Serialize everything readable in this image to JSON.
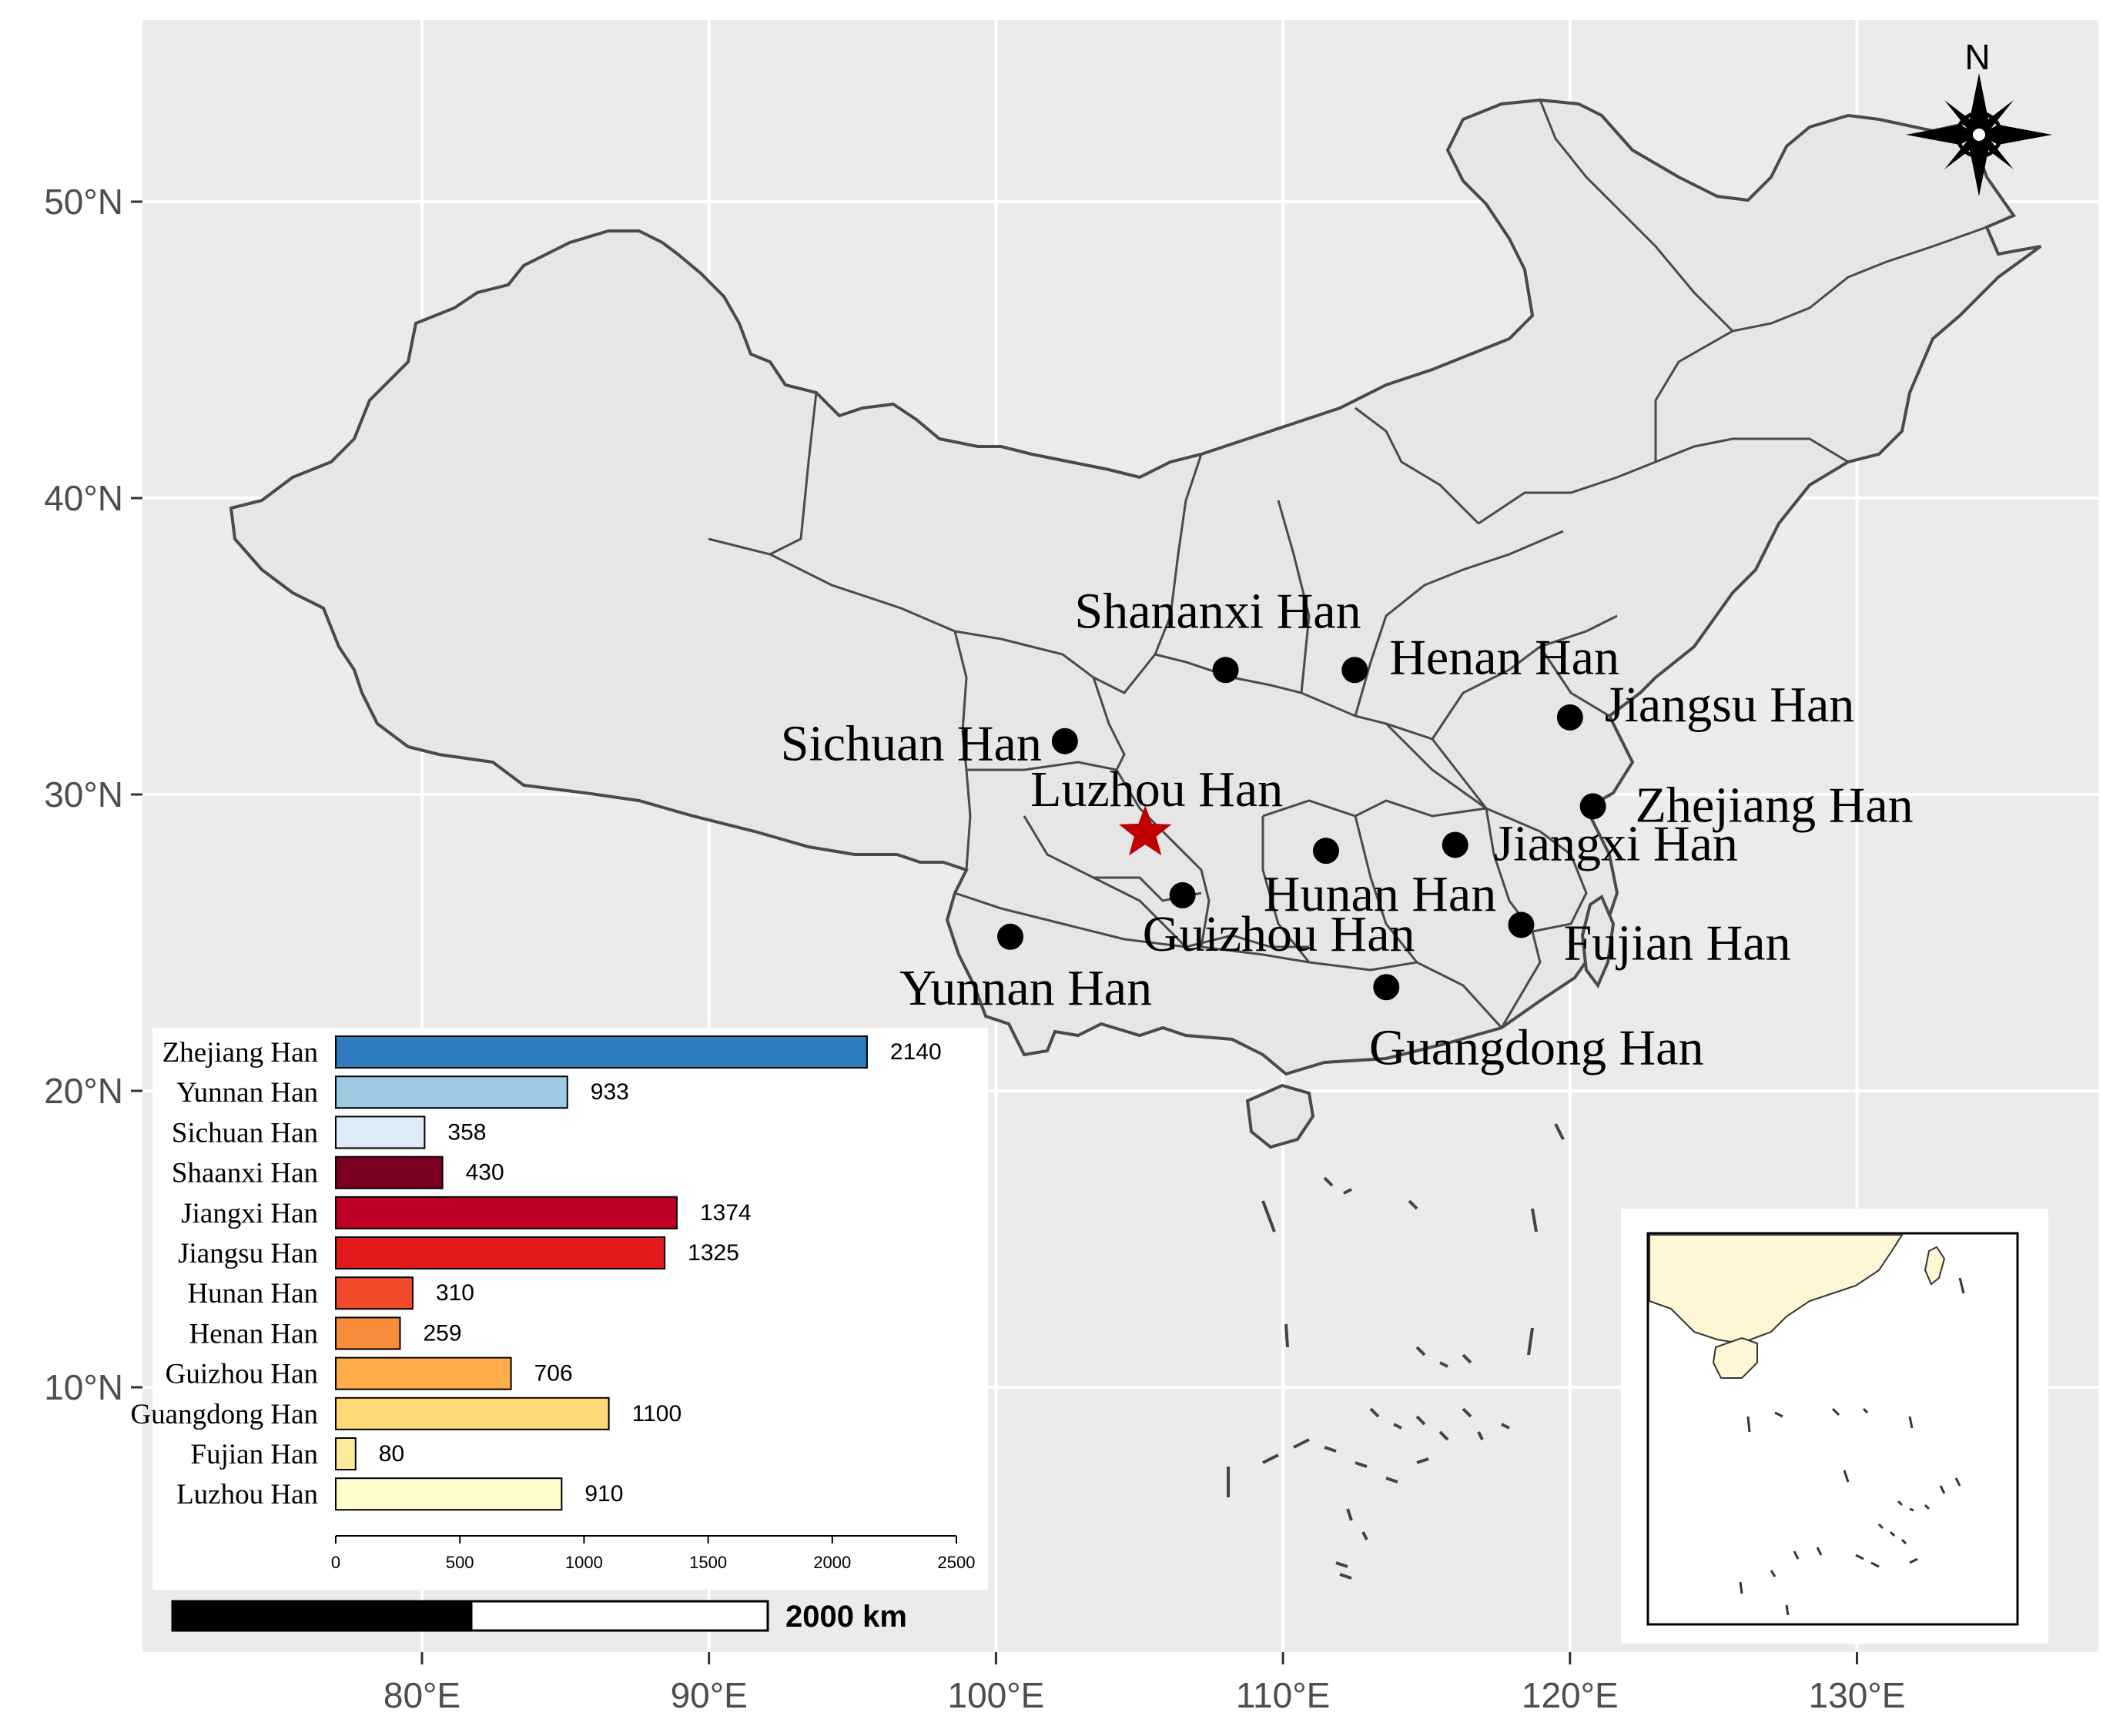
{
  "map": {
    "axis_x_labels": [
      "80°E",
      "90°E",
      "100°E",
      "110°E",
      "120°E",
      "130°E"
    ],
    "axis_x_values": [
      80,
      90,
      100,
      110,
      120,
      130
    ],
    "axis_y_labels": [
      "50°N",
      "40°N",
      "30°N",
      "20°N",
      "10°N"
    ],
    "axis_y_values": [
      50,
      40,
      30,
      20,
      10
    ],
    "north_label": "N",
    "scale_label": "2000 km",
    "colors": {
      "panel_bg": "#ebebeb",
      "land": "#e6e6e6",
      "border": "#4a4a4a",
      "grid": "#ffffff",
      "star": "#c00000",
      "inset_land": "#fff6d5"
    },
    "sites": [
      {
        "name": "Shananxi Han",
        "lon": 108.0,
        "lat": 34.2
      },
      {
        "name": "Henan Han",
        "lon": 112.5,
        "lat": 34.2
      },
      {
        "name": "Jiangsu Han",
        "lon": 120.0,
        "lat": 32.6
      },
      {
        "name": "Sichuan Han",
        "lon": 102.4,
        "lat": 31.8
      },
      {
        "name": "Zhejiang Han",
        "lon": 120.8,
        "lat": 29.6
      },
      {
        "name": "Jiangxi Han",
        "lon": 116.0,
        "lat": 28.3
      },
      {
        "name": "Hunan Han",
        "lon": 111.5,
        "lat": 28.1
      },
      {
        "name": "Guizhou Han",
        "lon": 106.5,
        "lat": 26.6
      },
      {
        "name": "Fujian Han",
        "lon": 118.3,
        "lat": 25.6
      },
      {
        "name": "Yunnan Han",
        "lon": 100.5,
        "lat": 25.2
      },
      {
        "name": "Guangdong Han",
        "lon": 113.6,
        "lat": 23.5
      }
    ],
    "study_site": {
      "name": "Luzhou Han",
      "lon": 105.2,
      "lat": 28.7
    }
  },
  "chart_data": {
    "type": "bar",
    "orientation": "horizontal",
    "categories": [
      "Zhejiang Han",
      "Yunnan Han",
      "Sichuan Han",
      "Shaanxi Han",
      "Jiangxi Han",
      "Jiangsu Han",
      "Hunan Han",
      "Henan Han",
      "Guizhou Han",
      "Guangdong Han",
      "Fujian Han",
      "Luzhou Han"
    ],
    "values": [
      2140,
      933,
      358,
      430,
      1374,
      1325,
      310,
      259,
      706,
      1100,
      80,
      910
    ],
    "value_labels": [
      "2140",
      "933",
      "358",
      "430",
      "1374",
      "1325",
      "310",
      "259",
      "706",
      "1100",
      "80",
      "910"
    ],
    "colors": [
      "#2e7cbd",
      "#9ec9e3",
      "#deeaf7",
      "#7b0021",
      "#be0026",
      "#e31a1c",
      "#f24b2c",
      "#f98d3c",
      "#fead4a",
      "#fed975",
      "#fee99a",
      "#ffffcc"
    ],
    "xlim": [
      0,
      2500
    ],
    "xticks": [
      "0",
      "500",
      "1000",
      "1500",
      "2000",
      "2500"
    ],
    "xtick_values": [
      0,
      500,
      1000,
      1500,
      2000,
      2500
    ],
    "title": "",
    "xlabel": "",
    "ylabel": ""
  }
}
